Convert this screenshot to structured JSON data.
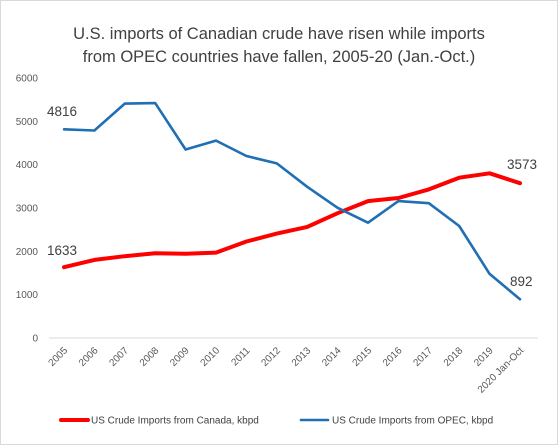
{
  "chart_data": {
    "type": "line",
    "title_lines": [
      "U.S. imports of Canadian crude have risen while imports",
      "from OPEC countries have fallen, 2005-20 (Jan.-Oct.)"
    ],
    "categories": [
      "2005",
      "2006",
      "2007",
      "2008",
      "2009",
      "2010",
      "2011",
      "2012",
      "2013",
      "2014",
      "2015",
      "2016",
      "2017",
      "2018",
      "2019",
      "2020 Jan-Oct"
    ],
    "ylim": [
      0,
      6000
    ],
    "yticks": [
      0,
      1000,
      2000,
      3000,
      4000,
      5000,
      6000
    ],
    "grid": false,
    "legend_position": "bottom",
    "series": [
      {
        "name": "US Crude Imports from Canada, kbpd",
        "color": "#ff0000",
        "values": [
          1633,
          1802,
          1888,
          1956,
          1943,
          1970,
          2228,
          2410,
          2565,
          2880,
          3160,
          3230,
          3430,
          3700,
          3800,
          3573
        ]
      },
      {
        "name": "US Crude Imports from OPEC, kbpd",
        "color": "#1f6fb5",
        "values": [
          4816,
          4789,
          5410,
          5420,
          4350,
          4555,
          4200,
          4030,
          3490,
          3005,
          2660,
          3160,
          3110,
          2585,
          1480,
          892
        ]
      }
    ],
    "annotations": [
      "4816",
      "1633",
      "3573",
      "892"
    ]
  }
}
